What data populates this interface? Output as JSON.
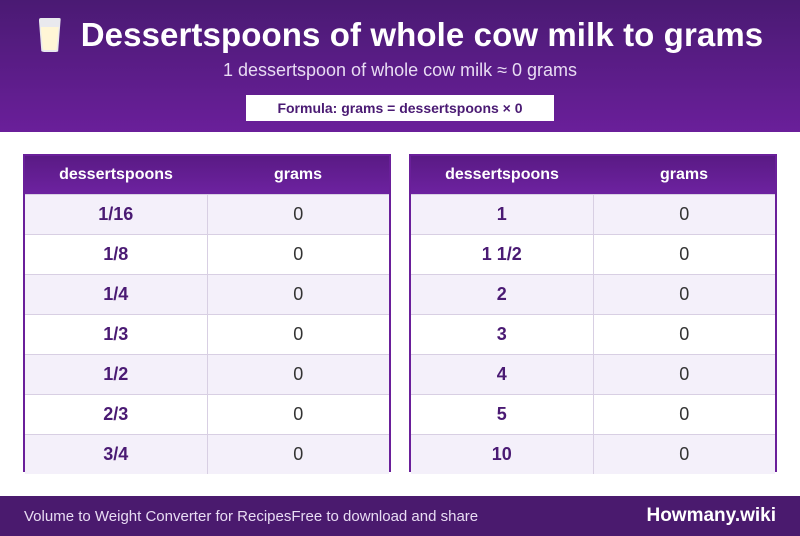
{
  "header": {
    "icon": "milk-glass-icon",
    "title": "Dessertspoons of whole cow milk to grams",
    "subtitle": "1 dessertspoon of whole cow milk ≈ 0 grams",
    "formula": "Formula: grams = dessertspoons × 0"
  },
  "tables": {
    "left": {
      "headers": [
        "dessertspoons",
        "grams"
      ],
      "rows": [
        {
          "a": "1/16",
          "b": "0"
        },
        {
          "a": "1/8",
          "b": "0"
        },
        {
          "a": "1/4",
          "b": "0"
        },
        {
          "a": "1/3",
          "b": "0"
        },
        {
          "a": "1/2",
          "b": "0"
        },
        {
          "a": "2/3",
          "b": "0"
        },
        {
          "a": "3/4",
          "b": "0"
        }
      ]
    },
    "right": {
      "headers": [
        "dessertspoons",
        "grams"
      ],
      "rows": [
        {
          "a": "1",
          "b": "0"
        },
        {
          "a": "1 1/2",
          "b": "0"
        },
        {
          "a": "2",
          "b": "0"
        },
        {
          "a": "3",
          "b": "0"
        },
        {
          "a": "4",
          "b": "0"
        },
        {
          "a": "5",
          "b": "0"
        },
        {
          "a": "10",
          "b": "0"
        }
      ]
    }
  },
  "footer": {
    "left_text_1": "Volume to Weight Converter for Recipes",
    "left_text_2": "Free to download and share",
    "brand": "Howmany.wiki"
  },
  "colors": {
    "header_bg": "#5a1a85",
    "accent": "#4a1a73",
    "footer_bg": "#4a1a6e"
  }
}
